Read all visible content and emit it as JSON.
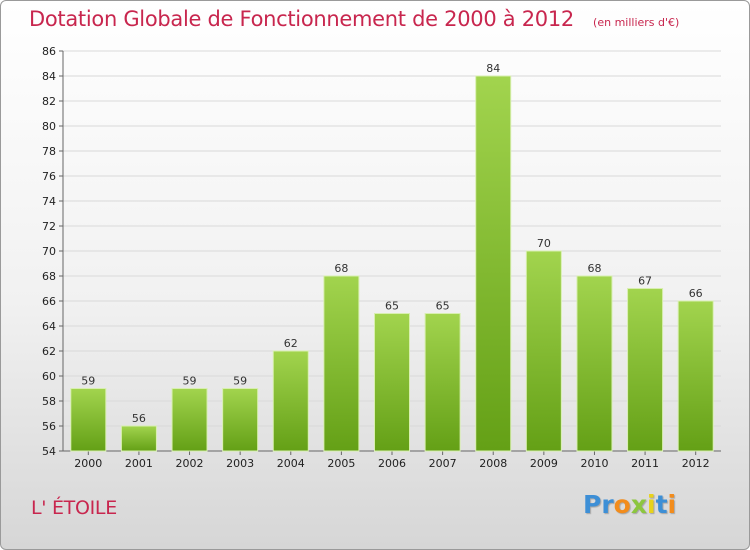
{
  "chart_data": {
    "type": "bar",
    "title": "Dotation Globale de Fonctionnement de 2000 à 2012",
    "subtitle": "(en milliers d'€)",
    "categories": [
      "2000",
      "2001",
      "2002",
      "2003",
      "2004",
      "2005",
      "2006",
      "2007",
      "2008",
      "2009",
      "2010",
      "2011",
      "2012"
    ],
    "values": [
      59,
      56,
      59,
      59,
      62,
      68,
      65,
      65,
      84,
      70,
      68,
      67,
      66
    ],
    "data_labels": [
      "59",
      "56",
      "59",
      "59",
      "62",
      "68",
      "65",
      "65",
      "84",
      "70",
      "68",
      "67",
      "66"
    ],
    "ylim": [
      54,
      86
    ],
    "yticks": [
      "54",
      "56",
      "58",
      "60",
      "62",
      "64",
      "66",
      "68",
      "70",
      "72",
      "74",
      "76",
      "78",
      "80",
      "82",
      "84",
      "86"
    ],
    "grid": true,
    "xlabel": "",
    "ylabel": "",
    "bar_color_top": "#a2d44e",
    "bar_color_bottom": "#64a016",
    "title_color": "#c8264e"
  },
  "commune": "L' ÉTOILE",
  "logo": {
    "letters": [
      "P",
      "r",
      "o",
      "x",
      "i",
      "t",
      "i"
    ],
    "colors": [
      "#3d8fd6",
      "#3d8fd6",
      "#f28c1c",
      "#8cc63f",
      "#e8d21a",
      "#3d8fd6",
      "#f28c1c"
    ]
  }
}
